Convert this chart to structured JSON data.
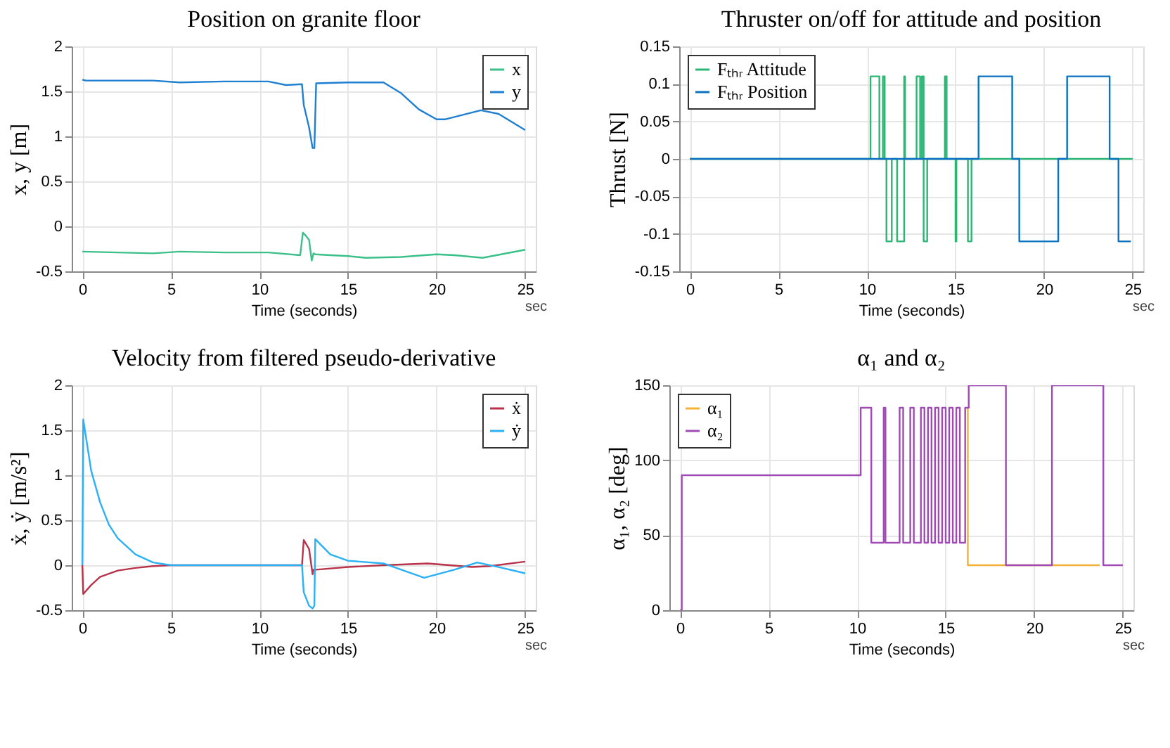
{
  "chart_data": [
    {
      "type": "line",
      "title": "Position on granite floor",
      "xlabel": "Time (seconds)",
      "ylabel": "x, y [m]",
      "annotations": [
        "sec"
      ],
      "xlim": [
        -0.6,
        25.6
      ],
      "xticks": [
        0,
        5,
        10,
        15,
        20,
        25
      ],
      "ylim": [
        -0.5,
        2
      ],
      "yticks": [
        -0.5,
        0,
        0.5,
        1,
        1.5,
        2
      ],
      "grid": true,
      "legend": "top right",
      "series": [
        {
          "name": "x",
          "color": "#3cc08a",
          "x": [
            0,
            2,
            4,
            5.5,
            8,
            10.5,
            12.3,
            12.45,
            12.6,
            12.8,
            12.95,
            13.05,
            13.15,
            14,
            15,
            16,
            18,
            20,
            21,
            22.6,
            25
          ],
          "values": [
            -0.28,
            -0.29,
            -0.3,
            -0.28,
            -0.29,
            -0.29,
            -0.32,
            -0.07,
            -0.1,
            -0.15,
            -0.38,
            -0.3,
            -0.31,
            -0.32,
            -0.33,
            -0.35,
            -0.34,
            -0.31,
            -0.32,
            -0.35,
            -0.26
          ]
        },
        {
          "name": "y",
          "color": "#1f7fd0",
          "x": [
            0,
            0.2,
            4,
            5.5,
            8,
            10.5,
            11.5,
            12.4,
            12.5,
            12.8,
            13.0,
            13.1,
            13.2,
            15,
            17,
            18,
            19,
            20,
            20.5,
            22.5,
            23.5,
            25
          ],
          "values": [
            1.63,
            1.62,
            1.62,
            1.6,
            1.61,
            1.61,
            1.57,
            1.58,
            1.35,
            1.1,
            0.87,
            0.87,
            1.59,
            1.6,
            1.6,
            1.48,
            1.3,
            1.19,
            1.19,
            1.29,
            1.25,
            1.07
          ]
        }
      ]
    },
    {
      "type": "step",
      "title": "Thruster on/off for attitude and position",
      "xlabel": "Time (seconds)",
      "ylabel": "Thrust [N]",
      "annotations": [
        "sec"
      ],
      "xlim": [
        -0.6,
        25.6
      ],
      "xticks": [
        0,
        5,
        10,
        15,
        20,
        25
      ],
      "ylim": [
        -0.15,
        0.15
      ],
      "yticks": [
        -0.15,
        -0.1,
        -0.05,
        0,
        0.05,
        0.1,
        0.15
      ],
      "grid": true,
      "legend": "top left",
      "series": [
        {
          "name": "Fₜₕᵣ Attitude",
          "color": "#2bb673",
          "x": [
            0,
            10.2,
            10.7,
            10.9,
            11.0,
            11.1,
            11.4,
            11.7,
            12.1,
            12.15,
            12.8,
            13.0,
            13.1,
            13.2,
            13.4,
            14.4,
            14.5,
            15.0,
            15.05,
            15.7,
            15.9,
            25
          ],
          "values": [
            0,
            0.11,
            0,
            0.11,
            0,
            -0.11,
            0,
            -0.11,
            0.11,
            0,
            0.11,
            0,
            0.11,
            -0.11,
            0,
            0.11,
            0,
            -0.11,
            0,
            -0.11,
            0,
            0
          ]
        },
        {
          "name": "Fₜₕᵣ Position",
          "color": "#0a72c0",
          "x": [
            0,
            16.3,
            17.6,
            18.2,
            18.6,
            19.0,
            20.8,
            21.3,
            22.1,
            23.1,
            23.7,
            24.2,
            24.9
          ],
          "values": [
            0,
            0.11,
            0.11,
            0,
            -0.11,
            -0.11,
            0,
            0.11,
            0.11,
            0.11,
            0,
            -0.11,
            -0.11
          ]
        }
      ]
    },
    {
      "type": "line",
      "title": "Velocity from filtered pseudo-derivative",
      "xlabel": "Time (seconds)",
      "ylabel": "ẋ, ẏ [m/s²]",
      "annotations": [
        "sec"
      ],
      "xlim": [
        -0.6,
        25.6
      ],
      "xticks": [
        0,
        5,
        10,
        15,
        20,
        25
      ],
      "ylim": [
        -0.5,
        2
      ],
      "yticks": [
        -0.5,
        0,
        0.5,
        1,
        1.5,
        2
      ],
      "grid": true,
      "legend": "top right",
      "series": [
        {
          "name": "ẋ",
          "color": "#b8334a",
          "x": [
            0,
            0.05,
            0.5,
            1,
            2,
            3,
            4,
            5,
            10,
            12.4,
            12.5,
            12.8,
            13.0,
            13.05,
            13.2,
            15,
            17,
            19.5,
            22,
            23,
            25
          ],
          "values": [
            0,
            -0.32,
            -0.22,
            -0.13,
            -0.06,
            -0.03,
            -0.01,
            0,
            0,
            0,
            0.28,
            0.18,
            -0.1,
            -0.05,
            -0.05,
            -0.02,
            0,
            0.02,
            -0.02,
            -0.01,
            0.04
          ]
        },
        {
          "name": "ẏ",
          "color": "#2ab0f5",
          "x": [
            0,
            0.05,
            0.5,
            1,
            1.5,
            2,
            3,
            4,
            5,
            10,
            12.4,
            12.5,
            12.8,
            13.0,
            13.1,
            13.15,
            14,
            15,
            17,
            19.3,
            21,
            22.3,
            23.5,
            25
          ],
          "values": [
            0,
            1.62,
            1.05,
            0.7,
            0.45,
            0.3,
            0.12,
            0.03,
            0,
            0,
            0,
            -0.3,
            -0.45,
            -0.48,
            -0.45,
            0.29,
            0.12,
            0.05,
            0.02,
            -0.14,
            -0.05,
            0.03,
            -0.02,
            -0.09
          ]
        }
      ]
    },
    {
      "type": "step",
      "title": "α₁ and α₂",
      "xlabel": "Time (seconds)",
      "ylabel": "α₁, α₂ [deg]",
      "annotations": [
        "sec"
      ],
      "xlim": [
        -0.6,
        25.6
      ],
      "xticks": [
        0,
        5,
        10,
        15,
        20,
        25
      ],
      "ylim": [
        0,
        150
      ],
      "yticks": [
        0,
        50,
        100,
        150
      ],
      "grid": true,
      "legend": "top left",
      "series": [
        {
          "name": "α₁",
          "color": "#f2b134",
          "x": [
            16.25,
            16.25,
            23.7
          ],
          "values": [
            135,
            30,
            30
          ]
        },
        {
          "name": "α₂",
          "color": "#a04bb5",
          "x": [
            0,
            0.1,
            10.2,
            10.8,
            11.5,
            11.6,
            12.4,
            12.6,
            13.0,
            13.2,
            13.6,
            13.8,
            14.0,
            14.2,
            14.4,
            14.6,
            14.8,
            15.0,
            15.2,
            15.4,
            15.6,
            15.8,
            16.1,
            16.3,
            18.4,
            21.0,
            23.9,
            25
          ],
          "values": [
            0,
            90,
            135,
            45,
            135,
            45,
            135,
            45,
            135,
            45,
            135,
            45,
            135,
            45,
            135,
            45,
            135,
            45,
            135,
            45,
            135,
            45,
            135,
            150,
            30,
            150,
            30,
            30
          ]
        }
      ]
    }
  ]
}
